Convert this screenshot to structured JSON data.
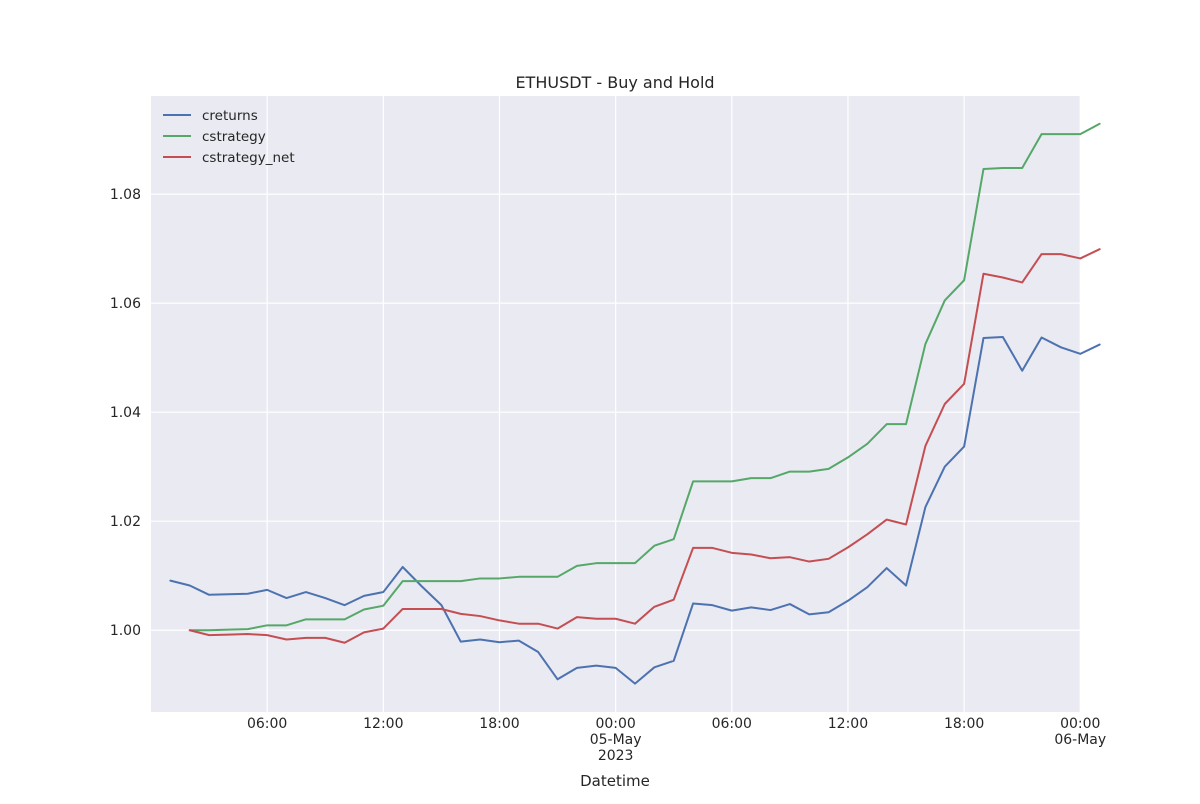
{
  "chart_data": {
    "type": "line",
    "title": "ETHUSDT - Buy and Hold",
    "xlabel": "Datetime",
    "ylabel": "",
    "x_start": "2023-05-04 00:00",
    "x_step_hours": 1,
    "xlim": [
      "2023-05-04 00:00",
      "2023-05-06 00:00"
    ],
    "ylim": [
      0.985,
      1.098
    ],
    "yticks": [
      {
        "value": 1.0,
        "label": "1.00"
      },
      {
        "value": 1.02,
        "label": "1.02"
      },
      {
        "value": 1.04,
        "label": "1.04"
      },
      {
        "value": 1.06,
        "label": "1.06"
      },
      {
        "value": 1.08,
        "label": "1.08"
      }
    ],
    "xticks": [
      {
        "x": "2023-05-04 06:00",
        "lines": [
          "06:00"
        ]
      },
      {
        "x": "2023-05-04 12:00",
        "lines": [
          "12:00"
        ]
      },
      {
        "x": "2023-05-04 18:00",
        "lines": [
          "18:00"
        ]
      },
      {
        "x": "2023-05-05 00:00",
        "lines": [
          "00:00",
          "05-May",
          "2023"
        ]
      },
      {
        "x": "2023-05-05 06:00",
        "lines": [
          "06:00"
        ]
      },
      {
        "x": "2023-05-05 12:00",
        "lines": [
          "12:00"
        ]
      },
      {
        "x": "2023-05-05 18:00",
        "lines": [
          "18:00"
        ]
      },
      {
        "x": "2023-05-06 00:00",
        "lines": [
          "00:00",
          "06-May"
        ]
      }
    ],
    "grid": true,
    "legend_position": "top-left",
    "series": [
      {
        "name": "creturns",
        "color": "#4c72b0",
        "start_index": 1,
        "values": [
          1.0091,
          1.0082,
          1.0065,
          1.0066,
          1.0067,
          1.0074,
          1.0059,
          1.007,
          1.0059,
          1.0046,
          1.0063,
          1.007,
          1.0116,
          1.008,
          1.0046,
          0.9979,
          0.9983,
          0.9978,
          0.9981,
          0.996,
          0.991,
          0.9931,
          0.9935,
          0.9931,
          0.9902,
          0.9932,
          0.9944,
          1.0049,
          1.0046,
          1.0036,
          1.0042,
          1.0037,
          1.0048,
          1.0029,
          1.0033,
          1.0054,
          1.0079,
          1.0114,
          1.0082,
          1.0226,
          1.03,
          1.0337,
          1.0536,
          1.0538,
          1.0476,
          1.0537,
          1.0519,
          1.0507,
          1.0524
        ]
      },
      {
        "name": "cstrategy",
        "color": "#55a868",
        "start_index": 2,
        "values": [
          1.0,
          1.0,
          1.0001,
          1.0002,
          1.0009,
          1.0009,
          1.002,
          1.002,
          1.002,
          1.0038,
          1.0045,
          1.009,
          1.009,
          1.009,
          1.009,
          1.0095,
          1.0095,
          1.0098,
          1.0098,
          1.0098,
          1.0118,
          1.0123,
          1.0123,
          1.0123,
          1.0155,
          1.0167,
          1.0273,
          1.0273,
          1.0273,
          1.0279,
          1.0279,
          1.0291,
          1.0291,
          1.0296,
          1.0317,
          1.0342,
          1.0378,
          1.0378,
          1.0525,
          1.0605,
          1.0642,
          1.0846,
          1.0848,
          1.0848,
          1.091,
          1.091,
          1.091,
          1.0929
        ]
      },
      {
        "name": "cstrategy_net",
        "color": "#c44e52",
        "start_index": 2,
        "values": [
          1.0,
          0.9991,
          0.9992,
          0.9993,
          0.9991,
          0.9983,
          0.9986,
          0.9986,
          0.9977,
          0.9996,
          1.0003,
          1.0039,
          1.0039,
          1.0039,
          1.003,
          1.0026,
          1.0018,
          1.0012,
          1.0012,
          1.0003,
          1.0024,
          1.0021,
          1.0021,
          1.0012,
          1.0043,
          1.0056,
          1.0151,
          1.0151,
          1.0142,
          1.0139,
          1.0132,
          1.0134,
          1.0126,
          1.0131,
          1.0152,
          1.0176,
          1.0203,
          1.0194,
          1.0338,
          1.0415,
          1.0452,
          1.0654,
          1.0647,
          1.0638,
          1.069,
          1.069,
          1.0682,
          1.0699
        ]
      }
    ]
  }
}
